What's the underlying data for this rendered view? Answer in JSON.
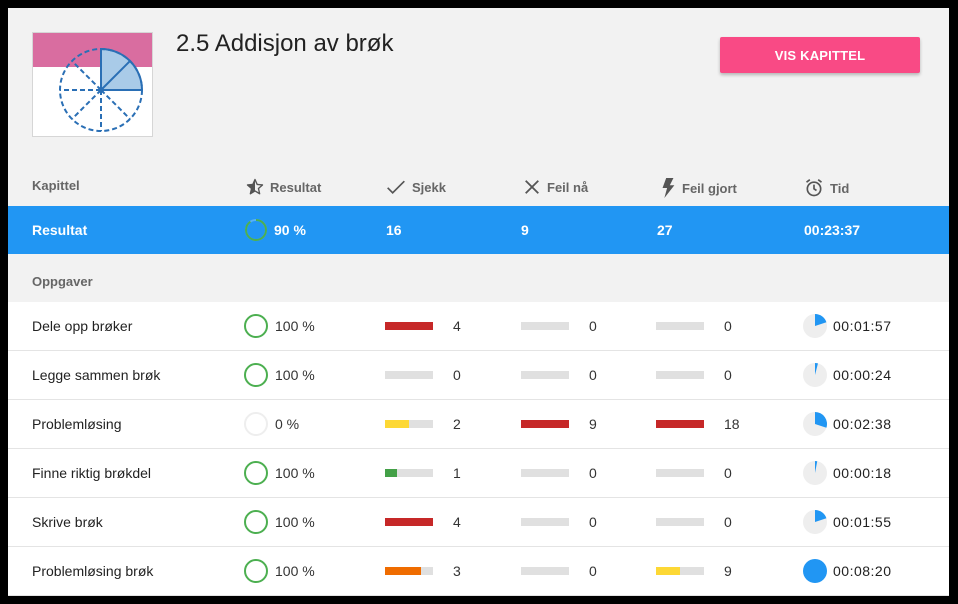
{
  "header": {
    "title": "2.5 Addisjon av brøk",
    "button_label": "VIS KAPITTEL"
  },
  "columns": {
    "kapittel": "Kapittel",
    "resultat": "Resultat",
    "sjekk": "Sjekk",
    "feil_na": "Feil nå",
    "feil_gjort": "Feil gjort",
    "tid": "Tid"
  },
  "summary": {
    "label": "Resultat",
    "result_pct": "90 %",
    "result_fraction": 0.9,
    "sjekk": "16",
    "feil_na": "9",
    "feil_gjort": "27",
    "tid": "00:23:37"
  },
  "section_label": "Oppgaver",
  "colors": {
    "accent": "#2196f3",
    "button": "#f94a85",
    "green": "#4caf50",
    "red": "#c62828",
    "yellow": "#fdd835",
    "orange": "#ef6c00",
    "lightgreen": "#43a047"
  },
  "tasks": [
    {
      "name": "Dele opp brøker",
      "result": "100 %",
      "result_fraction": 1.0,
      "sjekk": "4",
      "sjekk_fill": 1.0,
      "sjekk_color": "#c62828",
      "feil_na": "0",
      "feil_na_fill": 0,
      "feil_na_color": "#c62828",
      "feil_gjort": "0",
      "feil_gjort_fill": 0,
      "feil_gjort_color": "#c62828",
      "tid": "00:01:57",
      "tid_fraction": 0.2
    },
    {
      "name": "Legge sammen brøk",
      "result": "100 %",
      "result_fraction": 1.0,
      "sjekk": "0",
      "sjekk_fill": 0,
      "sjekk_color": "#c62828",
      "feil_na": "0",
      "feil_na_fill": 0,
      "feil_na_color": "#c62828",
      "feil_gjort": "0",
      "feil_gjort_fill": 0,
      "feil_gjort_color": "#c62828",
      "tid": "00:00:24",
      "tid_fraction": 0.04
    },
    {
      "name": "Problemløsing",
      "result": "0 %",
      "result_fraction": 0,
      "sjekk": "2",
      "sjekk_fill": 0.5,
      "sjekk_color": "#fdd835",
      "feil_na": "9",
      "feil_na_fill": 1.0,
      "feil_na_color": "#c62828",
      "feil_gjort": "18",
      "feil_gjort_fill": 1.0,
      "feil_gjort_color": "#c62828",
      "tid": "00:02:38",
      "tid_fraction": 0.3
    },
    {
      "name": "Finne riktig brøkdel",
      "result": "100 %",
      "result_fraction": 1.0,
      "sjekk": "1",
      "sjekk_fill": 0.25,
      "sjekk_color": "#43a047",
      "feil_na": "0",
      "feil_na_fill": 0,
      "feil_na_color": "#c62828",
      "feil_gjort": "0",
      "feil_gjort_fill": 0,
      "feil_gjort_color": "#c62828",
      "tid": "00:00:18",
      "tid_fraction": 0.03
    },
    {
      "name": "Skrive brøk",
      "result": "100 %",
      "result_fraction": 1.0,
      "sjekk": "4",
      "sjekk_fill": 1.0,
      "sjekk_color": "#c62828",
      "feil_na": "0",
      "feil_na_fill": 0,
      "feil_na_color": "#c62828",
      "feil_gjort": "0",
      "feil_gjort_fill": 0,
      "feil_gjort_color": "#c62828",
      "tid": "00:01:55",
      "tid_fraction": 0.2
    },
    {
      "name": "Problemløsing brøk",
      "result": "100 %",
      "result_fraction": 1.0,
      "sjekk": "3",
      "sjekk_fill": 0.75,
      "sjekk_color": "#ef6c00",
      "feil_na": "0",
      "feil_na_fill": 0,
      "feil_na_color": "#c62828",
      "feil_gjort": "9",
      "feil_gjort_fill": 0.5,
      "feil_gjort_color": "#fdd835",
      "tid": "00:08:20",
      "tid_fraction": 1.0
    }
  ]
}
